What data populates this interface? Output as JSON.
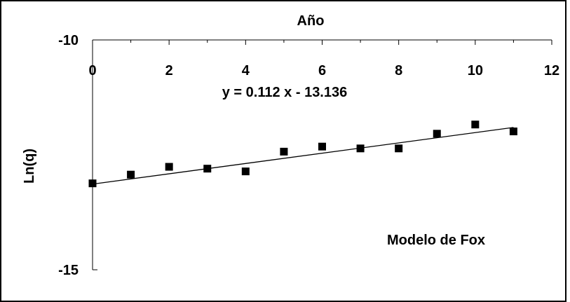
{
  "chart_data": {
    "type": "scatter",
    "title": "",
    "xlabel": "Año",
    "ylabel": "Ln(q)",
    "xlim": [
      0,
      12
    ],
    "ylim": [
      -15,
      -10
    ],
    "x_ticks": [
      "0",
      "2",
      "4",
      "6",
      "8",
      "10",
      "12"
    ],
    "y_ticks": [
      "-10",
      "-15"
    ],
    "x_axis_position": "top",
    "grid": false,
    "series": [
      {
        "x": [
          0,
          1,
          2,
          3,
          4,
          5,
          6,
          7,
          8,
          9,
          10,
          11
        ],
        "y": [
          -13.12,
          -12.93,
          -12.76,
          -12.8,
          -12.86,
          -12.43,
          -12.32,
          -12.36,
          -12.36,
          -12.04,
          -11.84,
          -11.99
        ],
        "marker": "square",
        "color": "#000000"
      }
    ],
    "trendline": {
      "slope": 0.112,
      "intercept": -13.136,
      "x_range": [
        0,
        11
      ],
      "equation": "y = 0.112 x - 13.136"
    },
    "annotation": "Modelo de Fox"
  }
}
